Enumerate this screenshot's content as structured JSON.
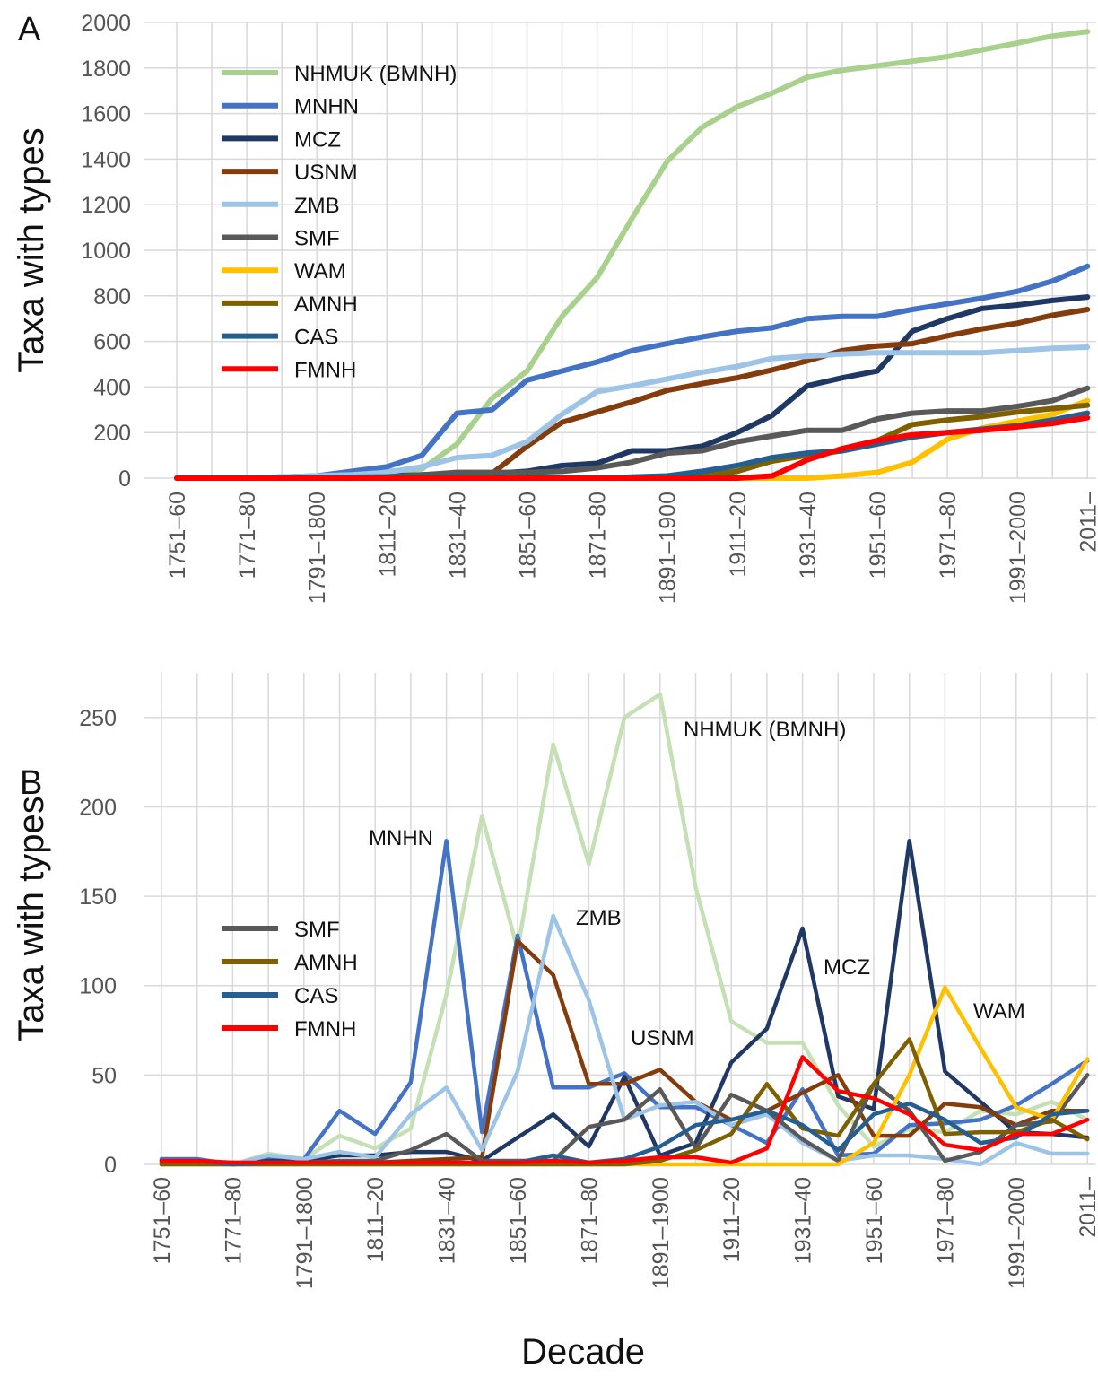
{
  "chart_data": [
    {
      "type": "line",
      "panel": "A",
      "ylabel": "Taxa with types",
      "grid": true,
      "categories": [
        "1751–60",
        null,
        "1771–80",
        null,
        "1791–1800",
        null,
        "1811–20",
        null,
        "1831–40",
        null,
        "1851–60",
        null,
        "1871–80",
        null,
        "1891–1900",
        null,
        "1911–20",
        null,
        "1931–40",
        null,
        "1951–60",
        null,
        "1971–80",
        null,
        "1991–2000",
        null,
        "2011–"
      ],
      "ylim": [
        0,
        2000
      ],
      "yticks": [
        0,
        200,
        400,
        600,
        800,
        1000,
        1200,
        1400,
        1600,
        1800,
        2000
      ],
      "series": [
        {
          "name": "NHMUK (BMNH)",
          "color": "#a9d18e",
          "values": [
            0,
            0,
            0,
            5,
            10,
            20,
            30,
            40,
            150,
            350,
            470,
            710,
            880,
            1140,
            1390,
            1540,
            1630,
            1690,
            1760,
            1790,
            1810,
            1830,
            1850,
            1880,
            1910,
            1940,
            1960
          ]
        },
        {
          "name": "MNHN",
          "color": "#4472c4",
          "values": [
            0,
            0,
            0,
            5,
            10,
            30,
            50,
            100,
            285,
            300,
            430,
            470,
            510,
            560,
            590,
            620,
            645,
            660,
            700,
            710,
            710,
            740,
            765,
            790,
            820,
            865,
            930
          ]
        },
        {
          "name": "MCZ",
          "color": "#203864",
          "values": [
            0,
            0,
            0,
            2,
            4,
            6,
            10,
            15,
            20,
            20,
            30,
            55,
            65,
            120,
            120,
            140,
            200,
            275,
            405,
            440,
            470,
            645,
            700,
            745,
            760,
            780,
            795
          ]
        },
        {
          "name": "USNM",
          "color": "#843c0c",
          "values": [
            0,
            0,
            0,
            0,
            0,
            1,
            2,
            3,
            15,
            20,
            140,
            245,
            290,
            335,
            385,
            415,
            440,
            475,
            515,
            560,
            580,
            590,
            625,
            655,
            680,
            715,
            740
          ]
        },
        {
          "name": "ZMB",
          "color": "#9dc3e6",
          "values": [
            0,
            0,
            0,
            5,
            10,
            15,
            25,
            50,
            90,
            100,
            160,
            280,
            380,
            405,
            435,
            465,
            490,
            525,
            535,
            545,
            550,
            550,
            550,
            550,
            560,
            570,
            575
          ]
        },
        {
          "name": "SMF",
          "color": "#595959",
          "values": [
            0,
            0,
            0,
            1,
            2,
            4,
            6,
            14,
            25,
            25,
            25,
            30,
            45,
            70,
            110,
            120,
            160,
            185,
            210,
            210,
            260,
            285,
            295,
            295,
            315,
            340,
            395
          ]
        },
        {
          "name": "WAM",
          "color": "#ffc000",
          "values": [
            0,
            0,
            0,
            0,
            0,
            0,
            0,
            0,
            0,
            0,
            0,
            0,
            0,
            0,
            0,
            0,
            0,
            0,
            0,
            10,
            25,
            70,
            170,
            220,
            250,
            280,
            340
          ]
        },
        {
          "name": "AMNH",
          "color": "#7f6000",
          "values": [
            0,
            0,
            0,
            0,
            0,
            0,
            0,
            0,
            0,
            0,
            0,
            0,
            0,
            0,
            0,
            10,
            30,
            75,
            100,
            120,
            165,
            235,
            255,
            270,
            290,
            305,
            320
          ]
        },
        {
          "name": "CAS",
          "color": "#255e91",
          "values": [
            0,
            0,
            0,
            0,
            0,
            0,
            0,
            0,
            0,
            0,
            0,
            0,
            0,
            5,
            10,
            30,
            55,
            90,
            110,
            120,
            150,
            180,
            200,
            215,
            230,
            255,
            285
          ]
        },
        {
          "name": "FMNH",
          "color": "#ff0000",
          "values": [
            0,
            0,
            0,
            0,
            0,
            0,
            0,
            0,
            0,
            0,
            0,
            0,
            0,
            0,
            0,
            0,
            0,
            10,
            80,
            130,
            165,
            190,
            200,
            210,
            225,
            240,
            265
          ]
        }
      ]
    },
    {
      "type": "line",
      "panel": "B",
      "ylabel": "Taxa with types",
      "xlabel": "Decade",
      "grid": true,
      "categories": [
        "1751–60",
        null,
        "1771–80",
        null,
        "1791–1800",
        null,
        "1811–20",
        null,
        "1831–40",
        null,
        "1851–60",
        null,
        "1871–80",
        null,
        "1891–1900",
        null,
        "1911–20",
        null,
        "1931–40",
        null,
        "1951–60",
        null,
        "1971–80",
        null,
        "1991–2000",
        null,
        "2011–"
      ],
      "ylim": [
        0,
        275
      ],
      "yticks": [
        0,
        50,
        100,
        150,
        200,
        250
      ],
      "series": [
        {
          "name": "NHMUK (BMNH)",
          "color": "#c5e0b4",
          "label": "annotation",
          "values": [
            2,
            2,
            0,
            6,
            3,
            16,
            9,
            20,
            95,
            195,
            120,
            235,
            168,
            250,
            263,
            155,
            80,
            68,
            68,
            33,
            10,
            20,
            18,
            30,
            28,
            35,
            25
          ]
        },
        {
          "name": "MNHN",
          "color": "#4472c4",
          "label": "annotation",
          "values": [
            3,
            3,
            0,
            3,
            3,
            30,
            17,
            46,
            181,
            18,
            128,
            43,
            43,
            51,
            32,
            32,
            22,
            12,
            42,
            5,
            6,
            22,
            23,
            25,
            33,
            45,
            58
          ]
        },
        {
          "name": "MCZ",
          "color": "#203864",
          "label": "annotation",
          "values": [
            2,
            2,
            0,
            2,
            2,
            5,
            5,
            7,
            7,
            2,
            15,
            28,
            10,
            49,
            5,
            12,
            57,
            76,
            132,
            38,
            31,
            181,
            52,
            35,
            18,
            17,
            15
          ]
        },
        {
          "name": "USNM",
          "color": "#843c0c",
          "label": "annotation",
          "values": [
            1,
            1,
            1,
            1,
            1,
            1,
            1,
            2,
            3,
            4,
            125,
            106,
            45,
            45,
            53,
            35,
            25,
            30,
            40,
            50,
            16,
            16,
            34,
            32,
            22,
            30,
            30
          ]
        },
        {
          "name": "ZMB",
          "color": "#9dc3e6",
          "label": "annotation",
          "values": [
            2,
            2,
            0,
            5,
            3,
            7,
            4,
            28,
            43,
            8,
            52,
            139,
            92,
            25,
            33,
            35,
            22,
            28,
            12,
            2,
            5,
            5,
            3,
            0,
            12,
            6,
            6
          ]
        },
        {
          "name": "SMF",
          "color": "#595959",
          "label": "legend",
          "values": [
            1,
            1,
            0,
            1,
            1,
            2,
            2,
            8,
            17,
            2,
            2,
            2,
            21,
            25,
            42,
            9,
            39,
            30,
            14,
            2,
            45,
            30,
            2,
            7,
            22,
            24,
            50
          ]
        },
        {
          "name": "WAM",
          "color": "#ffc000",
          "label": "annotation",
          "values": [
            0,
            0,
            0,
            0,
            0,
            0,
            0,
            0,
            0,
            0,
            0,
            0,
            0,
            0,
            0,
            0,
            0,
            0,
            0,
            0,
            12,
            50,
            99,
            65,
            32,
            25,
            59
          ]
        },
        {
          "name": "AMNH",
          "color": "#7f6000",
          "label": "legend",
          "values": [
            0,
            0,
            0,
            0,
            0,
            0,
            0,
            0,
            0,
            0,
            0,
            0,
            0,
            0,
            2,
            8,
            17,
            45,
            20,
            16,
            45,
            70,
            17,
            18,
            18,
            25,
            14
          ]
        },
        {
          "name": "CAS",
          "color": "#255e91",
          "label": "legend",
          "values": [
            2,
            2,
            0,
            1,
            1,
            1,
            1,
            1,
            1,
            1,
            1,
            5,
            1,
            3,
            10,
            22,
            25,
            30,
            22,
            8,
            28,
            34,
            25,
            12,
            15,
            28,
            30
          ]
        },
        {
          "name": "FMNH",
          "color": "#ff0000",
          "label": "legend",
          "values": [
            2,
            2,
            1,
            1,
            1,
            1,
            1,
            1,
            1,
            1,
            1,
            2,
            1,
            2,
            4,
            4,
            1,
            9,
            60,
            41,
            37,
            28,
            11,
            8,
            17,
            17,
            25
          ]
        }
      ]
    }
  ]
}
